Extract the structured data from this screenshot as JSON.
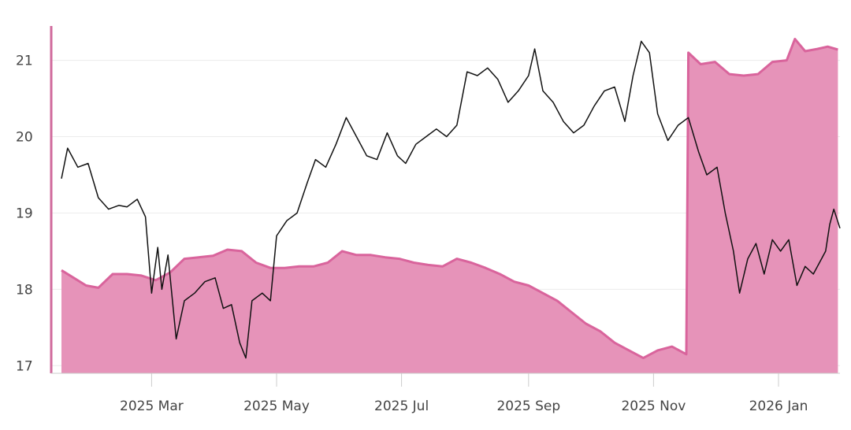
{
  "chart_data": {
    "type": "area",
    "title": "",
    "xlabel": "",
    "ylabel": "",
    "ylim": [
      16.9,
      21.45
    ],
    "xlim": [
      "2025-01-16",
      "2026-01-31"
    ],
    "grid": true,
    "legend": "none",
    "y_ticks": [
      {
        "label": "17",
        "value": 17
      },
      {
        "label": "18",
        "value": 18
      },
      {
        "label": "19",
        "value": 19
      },
      {
        "label": "20",
        "value": 20
      },
      {
        "label": "21",
        "value": 21
      }
    ],
    "x_ticks": [
      {
        "label": "2025 Mar",
        "date": "2025-03-01"
      },
      {
        "label": "2025 May",
        "date": "2025-05-01"
      },
      {
        "label": "2025 Jul",
        "date": "2025-07-01"
      },
      {
        "label": "2025 Sep",
        "date": "2025-09-01"
      },
      {
        "label": "2025 Nov",
        "date": "2025-11-01"
      },
      {
        "label": "2026 Jan",
        "date": "2026-01-01"
      }
    ],
    "colors": {
      "area_fill": "#e693b9",
      "area_line": "#d9649c",
      "price_line": "#111111",
      "axis": "#d06a9c"
    },
    "series": [
      {
        "type": "area",
        "points": [
          [
            "2025-01-16",
            18.25
          ],
          [
            "2025-01-22",
            18.15
          ],
          [
            "2025-01-28",
            18.05
          ],
          [
            "2025-02-03",
            18.02
          ],
          [
            "2025-02-10",
            18.2
          ],
          [
            "2025-02-17",
            18.2
          ],
          [
            "2025-02-24",
            18.18
          ],
          [
            "2025-03-03",
            18.12
          ],
          [
            "2025-03-10",
            18.22
          ],
          [
            "2025-03-17",
            18.4
          ],
          [
            "2025-03-24",
            18.42
          ],
          [
            "2025-03-31",
            18.44
          ],
          [
            "2025-04-07",
            18.52
          ],
          [
            "2025-04-14",
            18.5
          ],
          [
            "2025-04-21",
            18.35
          ],
          [
            "2025-04-28",
            18.28
          ],
          [
            "2025-05-05",
            18.28
          ],
          [
            "2025-05-12",
            18.3
          ],
          [
            "2025-05-19",
            18.3
          ],
          [
            "2025-05-26",
            18.35
          ],
          [
            "2025-06-02",
            18.5
          ],
          [
            "2025-06-09",
            18.45
          ],
          [
            "2025-06-16",
            18.45
          ],
          [
            "2025-06-23",
            18.42
          ],
          [
            "2025-06-30",
            18.4
          ],
          [
            "2025-07-07",
            18.35
          ],
          [
            "2025-07-14",
            18.32
          ],
          [
            "2025-07-21",
            18.3
          ],
          [
            "2025-07-28",
            18.4
          ],
          [
            "2025-08-04",
            18.35
          ],
          [
            "2025-08-11",
            18.28
          ],
          [
            "2025-08-18",
            18.2
          ],
          [
            "2025-08-25",
            18.1
          ],
          [
            "2025-09-01",
            18.05
          ],
          [
            "2025-09-08",
            17.95
          ],
          [
            "2025-09-15",
            17.85
          ],
          [
            "2025-09-22",
            17.7
          ],
          [
            "2025-09-29",
            17.55
          ],
          [
            "2025-10-06",
            17.45
          ],
          [
            "2025-10-13",
            17.3
          ],
          [
            "2025-10-20",
            17.2
          ],
          [
            "2025-10-27",
            17.1
          ],
          [
            "2025-11-03",
            17.2
          ],
          [
            "2025-11-10",
            17.25
          ],
          [
            "2025-11-17",
            17.15
          ],
          [
            "2025-11-18",
            21.1
          ],
          [
            "2025-11-24",
            20.95
          ],
          [
            "2025-12-01",
            20.98
          ],
          [
            "2025-12-08",
            20.82
          ],
          [
            "2025-12-15",
            20.8
          ],
          [
            "2025-12-22",
            20.82
          ],
          [
            "2025-12-29",
            20.98
          ],
          [
            "2026-01-05",
            21.0
          ],
          [
            "2026-01-09",
            21.28
          ],
          [
            "2026-01-14",
            21.12
          ],
          [
            "2026-01-20",
            21.15
          ],
          [
            "2026-01-25",
            21.18
          ],
          [
            "2026-01-30",
            21.14
          ]
        ]
      },
      {
        "type": "line",
        "points": [
          [
            "2025-01-16",
            19.45
          ],
          [
            "2025-01-19",
            19.85
          ],
          [
            "2025-01-24",
            19.6
          ],
          [
            "2025-01-29",
            19.65
          ],
          [
            "2025-02-03",
            19.2
          ],
          [
            "2025-02-08",
            19.05
          ],
          [
            "2025-02-13",
            19.1
          ],
          [
            "2025-02-17",
            19.08
          ],
          [
            "2025-02-22",
            19.18
          ],
          [
            "2025-02-26",
            18.95
          ],
          [
            "2025-03-01",
            17.95
          ],
          [
            "2025-03-04",
            18.55
          ],
          [
            "2025-03-06",
            18.0
          ],
          [
            "2025-03-09",
            18.45
          ],
          [
            "2025-03-13",
            17.35
          ],
          [
            "2025-03-17",
            17.85
          ],
          [
            "2025-03-22",
            17.95
          ],
          [
            "2025-03-27",
            18.1
          ],
          [
            "2025-04-01",
            18.15
          ],
          [
            "2025-04-05",
            17.75
          ],
          [
            "2025-04-09",
            17.8
          ],
          [
            "2025-04-13",
            17.3
          ],
          [
            "2025-04-16",
            17.1
          ],
          [
            "2025-04-19",
            17.85
          ],
          [
            "2025-04-24",
            17.95
          ],
          [
            "2025-04-28",
            17.85
          ],
          [
            "2025-05-01",
            18.7
          ],
          [
            "2025-05-06",
            18.9
          ],
          [
            "2025-05-11",
            19.0
          ],
          [
            "2025-05-16",
            19.4
          ],
          [
            "2025-05-20",
            19.7
          ],
          [
            "2025-05-25",
            19.6
          ],
          [
            "2025-05-30",
            19.9
          ],
          [
            "2025-06-04",
            20.25
          ],
          [
            "2025-06-09",
            20.0
          ],
          [
            "2025-06-14",
            19.75
          ],
          [
            "2025-06-19",
            19.7
          ],
          [
            "2025-06-24",
            20.05
          ],
          [
            "2025-06-29",
            19.75
          ],
          [
            "2025-07-03",
            19.65
          ],
          [
            "2025-07-08",
            19.9
          ],
          [
            "2025-07-13",
            20.0
          ],
          [
            "2025-07-18",
            20.1
          ],
          [
            "2025-07-23",
            20.0
          ],
          [
            "2025-07-28",
            20.15
          ],
          [
            "2025-08-02",
            20.85
          ],
          [
            "2025-08-07",
            20.8
          ],
          [
            "2025-08-12",
            20.9
          ],
          [
            "2025-08-17",
            20.75
          ],
          [
            "2025-08-22",
            20.45
          ],
          [
            "2025-08-27",
            20.6
          ],
          [
            "2025-09-01",
            20.8
          ],
          [
            "2025-09-04",
            21.15
          ],
          [
            "2025-09-08",
            20.6
          ],
          [
            "2025-09-13",
            20.45
          ],
          [
            "2025-09-18",
            20.2
          ],
          [
            "2025-09-23",
            20.05
          ],
          [
            "2025-09-28",
            20.15
          ],
          [
            "2025-10-03",
            20.4
          ],
          [
            "2025-10-08",
            20.6
          ],
          [
            "2025-10-13",
            20.65
          ],
          [
            "2025-10-18",
            20.2
          ],
          [
            "2025-10-22",
            20.8
          ],
          [
            "2025-10-26",
            21.25
          ],
          [
            "2025-10-30",
            21.1
          ],
          [
            "2025-11-03",
            20.3
          ],
          [
            "2025-11-08",
            19.95
          ],
          [
            "2025-11-13",
            20.15
          ],
          [
            "2025-11-18",
            20.25
          ],
          [
            "2025-11-23",
            19.8
          ],
          [
            "2025-11-27",
            19.5
          ],
          [
            "2025-12-02",
            19.6
          ],
          [
            "2025-12-06",
            19.0
          ],
          [
            "2025-12-10",
            18.5
          ],
          [
            "2025-12-13",
            17.95
          ],
          [
            "2025-12-17",
            18.4
          ],
          [
            "2025-12-21",
            18.6
          ],
          [
            "2025-12-25",
            18.2
          ],
          [
            "2025-12-29",
            18.65
          ],
          [
            "2026-01-02",
            18.5
          ],
          [
            "2026-01-06",
            18.65
          ],
          [
            "2026-01-10",
            18.05
          ],
          [
            "2026-01-14",
            18.3
          ],
          [
            "2026-01-18",
            18.2
          ],
          [
            "2026-01-22",
            18.4
          ],
          [
            "2026-01-24",
            18.5
          ],
          [
            "2026-01-26",
            18.85
          ],
          [
            "2026-01-28",
            19.05
          ],
          [
            "2026-01-31",
            18.8
          ]
        ]
      }
    ]
  }
}
